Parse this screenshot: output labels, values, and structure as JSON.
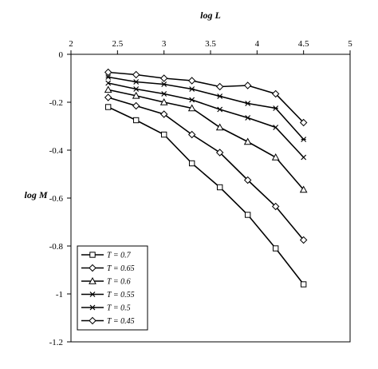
{
  "chart_data": {
    "type": "line",
    "title": "",
    "xlabel": "log L",
    "ylabel": "log M",
    "xlim": [
      2,
      5
    ],
    "ylim": [
      -1.2,
      0
    ],
    "x_ticks": [
      "2",
      "2.5",
      "3",
      "3.5",
      "4",
      "4.5",
      "5"
    ],
    "y_ticks": [
      "0",
      "-0.2",
      "-0.4",
      "-0.6",
      "-0.8",
      "-1",
      "-1.2"
    ],
    "x_axis_position": "top",
    "grid": false,
    "legend": "bottom-left",
    "x": [
      2.4,
      2.7,
      3.0,
      3.3,
      3.6,
      3.9,
      4.2,
      4.5
    ],
    "series": [
      {
        "name": "T = 0.7",
        "marker": "square",
        "values": [
          -0.22,
          -0.275,
          -0.335,
          -0.455,
          -0.555,
          -0.67,
          -0.81,
          -0.96
        ]
      },
      {
        "name": "T = 0.65",
        "marker": "diamond",
        "values": [
          -0.18,
          -0.215,
          -0.25,
          -0.335,
          -0.41,
          -0.525,
          -0.635,
          -0.775
        ]
      },
      {
        "name": "T = 0.6",
        "marker": "triangle",
        "values": [
          -0.148,
          -0.173,
          -0.2,
          -0.225,
          -0.305,
          -0.365,
          -0.43,
          -0.565
        ]
      },
      {
        "name": "T = 0.55",
        "marker": "x",
        "values": [
          -0.12,
          -0.145,
          -0.165,
          -0.19,
          -0.23,
          -0.265,
          -0.305,
          -0.43
        ]
      },
      {
        "name": "T = 0.5",
        "marker": "x-bar",
        "values": [
          -0.095,
          -0.115,
          -0.125,
          -0.145,
          -0.175,
          -0.205,
          -0.225,
          -0.355
        ]
      },
      {
        "name": "T = 0.45",
        "marker": "diamond-open",
        "values": [
          -0.075,
          -0.085,
          -0.1,
          -0.11,
          -0.135,
          -0.13,
          -0.165,
          -0.285
        ]
      }
    ]
  }
}
